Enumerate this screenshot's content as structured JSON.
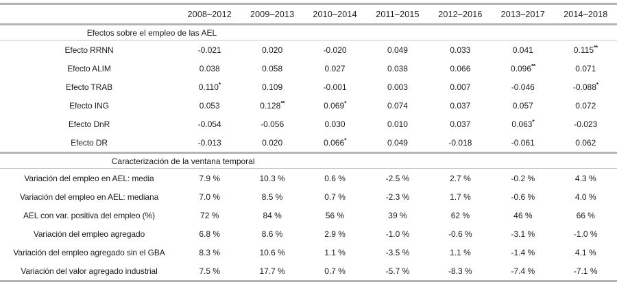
{
  "table": {
    "corner_label": "",
    "columns": [
      "2008–2012",
      "2009–2013",
      "2010–2014",
      "2011–2015",
      "2012–2016",
      "2013–2017",
      "2014–2018"
    ],
    "sections": [
      {
        "header": "Efectos sobre el empleo de las AEL",
        "rows": [
          {
            "label": "Efecto RRNN",
            "values": [
              "-0.021",
              "0.020",
              "-0.020",
              "0.049",
              "0.033",
              "0.041",
              "0.115**"
            ]
          },
          {
            "label": "Efecto ALIM",
            "values": [
              "0.038",
              "0.058",
              "0.027",
              "0.038",
              "0.066",
              "0.096**",
              "0.071"
            ]
          },
          {
            "label": "Efecto TRAB",
            "values": [
              "0.110*",
              "0.109",
              "-0.001",
              "0.003",
              "0.007",
              "-0.046",
              "-0.088*"
            ]
          },
          {
            "label": "Efecto ING",
            "values": [
              "0.053",
              "0.128**",
              "0.069*",
              "0.074",
              "0.037",
              "0.057",
              "0.072"
            ]
          },
          {
            "label": "Efecto DnR",
            "values": [
              "-0.054",
              "-0.056",
              "0.030",
              "0.010",
              "0.037",
              "0.063*",
              "-0.023"
            ]
          },
          {
            "label": "Efecto DR",
            "values": [
              "-0.013",
              "0.020",
              "0.066*",
              "0.049",
              "-0.018",
              "-0.061",
              "0.062"
            ]
          }
        ]
      },
      {
        "header": "Caracterización de la ventana temporal",
        "rows": [
          {
            "label": "Variación del empleo en AEL: media",
            "values": [
              "7.9 %",
              "10.3 %",
              "0.6 %",
              "-2.5 %",
              "2.7 %",
              "-0.2 %",
              "4.3 %"
            ]
          },
          {
            "label": "Variación del empleo en AEL: mediana",
            "values": [
              "7.0 %",
              "8.5 %",
              "0.7 %",
              "-2.3 %",
              "1.7 %",
              "-0.6 %",
              "4.0 %"
            ]
          },
          {
            "label": "AEL con var. positiva del empleo (%)",
            "values": [
              "72 %",
              "84 %",
              "56 %",
              "39 %",
              "62 %",
              "46 %",
              "66 %"
            ]
          },
          {
            "label": "Variación del empleo agregado",
            "values": [
              "6.8 %",
              "8.6 %",
              "2.9 %",
              "-1.0 %",
              "-0.6 %",
              "-3.1 %",
              "-1.0 %"
            ]
          },
          {
            "label": "Variación del empleo agregado sin el GBA",
            "values": [
              "8.3 %",
              "10.6 %",
              "1.1 %",
              "-3.5 %",
              "1.1 %",
              "-1.4 %",
              "4.1 %"
            ]
          },
          {
            "label": "Variación del valor agregado industrial",
            "values": [
              "7.5 %",
              "17.7 %",
              "0.7 %",
              "-5.7 %",
              "-8.3 %",
              "-7.4 %",
              "-7.1 %"
            ]
          }
        ]
      }
    ],
    "colors": {
      "rule_thick": "#b3b3b3",
      "rule_thin": "#c7c7c7",
      "text": "#1b1b1b"
    }
  }
}
